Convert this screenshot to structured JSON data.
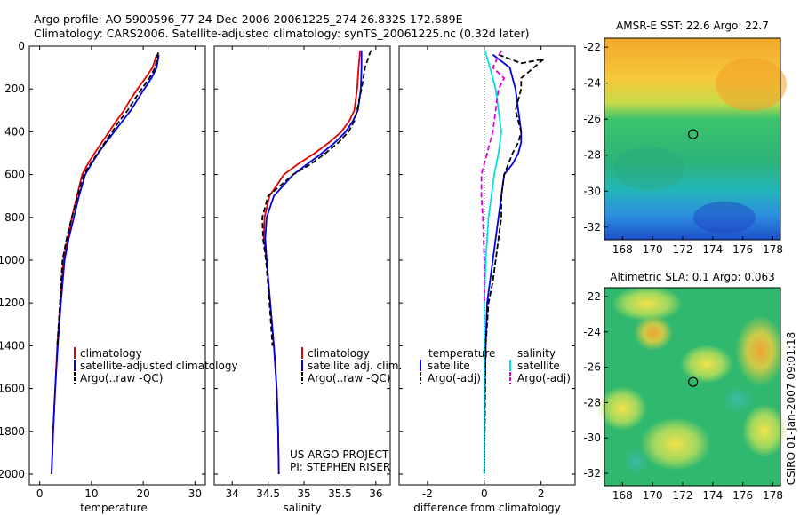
{
  "header": {
    "line1": "Argo profile: AO 5900596_77 24-Dec-2006 20061225_274 26.832S 172.689E",
    "line2": "Climatology: CARS2006. Satellite-adjusted climatology: synTS_20061225.nc (0.32d later)"
  },
  "y_axis": {
    "ticks": [
      0,
      200,
      400,
      600,
      800,
      1000,
      1200,
      1400,
      1600,
      1800,
      2000
    ],
    "ylim": [
      0,
      2050
    ]
  },
  "panels": {
    "temperature": {
      "xlabel": "temperature",
      "xlim": [
        -2,
        32
      ],
      "xticks": [
        0,
        10,
        20,
        30
      ],
      "legend": [
        "climatology",
        "satellite-adjusted climatology",
        "Argo(..raw -QC)"
      ]
    },
    "salinity": {
      "xlabel": "salinity",
      "xlim": [
        33.75,
        36.2
      ],
      "xticks": [
        34,
        34.5,
        35,
        35.5,
        36
      ],
      "legend": [
        "climatology",
        "satellite adj. clim.",
        "Argo(..raw -QC)"
      ],
      "credit1": "US ARGO PROJECT",
      "credit2": "PI: STEPHEN RISER"
    },
    "difference": {
      "xlabel": "difference from climatology",
      "xlim": [
        -3,
        3.2
      ],
      "xticks": [
        -2,
        0,
        2
      ],
      "legend_temp_head": "temperature",
      "legend_sal_head": "salinity",
      "legend_temp": [
        "satellite",
        "Argo(-adj)"
      ],
      "legend_sal": [
        "satellite",
        "Argo(-adj)"
      ]
    }
  },
  "maps": {
    "sst": {
      "title": "AMSR-E SST: 22.6 Argo: 22.7",
      "yticks": [
        -22,
        -24,
        -26,
        -28,
        -30,
        -32
      ],
      "xticks": [
        168,
        170,
        172,
        174,
        176,
        178
      ]
    },
    "sla": {
      "title": "Altimetric SLA: 0.1 Argo: 0.063",
      "yticks": [
        -22,
        -24,
        -26,
        -28,
        -30,
        -32
      ],
      "xticks": [
        168,
        170,
        172,
        174,
        176,
        178
      ]
    },
    "float_position": {
      "lon": 172.689,
      "lat": -26.832
    },
    "xlim": [
      166.8,
      178.5
    ],
    "ylim": [
      -32.7,
      -21.5
    ]
  },
  "side_label": "CSIRO 01-Jan-2007 09:01:18",
  "colors": {
    "climatology": "#e00000",
    "satellite": "#0000e0",
    "argo": "#000000",
    "sal_satellite": "#00e0e0",
    "sal_argo": "#e000e0"
  },
  "chart_data": [
    {
      "type": "line",
      "title": "",
      "xlabel": "temperature",
      "ylabel": "",
      "xlim": [
        -2,
        32
      ],
      "ylim": [
        0,
        2050
      ],
      "series": [
        {
          "name": "climatology",
          "x": [
            22.6,
            21.8,
            20.4,
            18.9,
            17.5,
            16.3,
            14.8,
            13.4,
            12.0,
            10.6,
            9.3,
            8.2,
            7.2,
            6.2,
            5.4,
            4.6,
            4.0,
            3.4,
            3.0,
            2.6,
            2.3
          ],
          "y": [
            40,
            100,
            150,
            200,
            250,
            300,
            350,
            400,
            450,
            500,
            550,
            600,
            700,
            800,
            900,
            1000,
            1200,
            1400,
            1600,
            1800,
            2000
          ]
        },
        {
          "name": "satellite-adjusted climatology",
          "x": [
            23.0,
            22.6,
            21.6,
            20.2,
            18.9,
            17.6,
            16.0,
            14.4,
            12.8,
            11.3,
            10.0,
            8.8,
            7.6,
            6.6,
            5.6,
            4.8,
            4.1,
            3.5,
            3.0,
            2.6,
            2.3
          ],
          "y": [
            40,
            100,
            150,
            200,
            250,
            300,
            350,
            400,
            450,
            500,
            550,
            600,
            700,
            800,
            900,
            1000,
            1200,
            1400,
            1600,
            1800,
            2000
          ]
        },
        {
          "name": "Argo(..raw -QC)",
          "x": [
            22.9,
            22.3,
            21.2,
            19.7,
            18.3,
            17.0,
            15.4,
            14.0,
            12.6,
            11.2,
            9.8,
            8.5,
            7.3,
            6.2,
            5.2,
            4.4,
            3.9,
            3.4
          ],
          "y": [
            30,
            100,
            150,
            200,
            250,
            300,
            350,
            400,
            450,
            500,
            550,
            600,
            700,
            800,
            900,
            1000,
            1200,
            1400
          ]
        }
      ]
    },
    {
      "type": "line",
      "title": "",
      "xlabel": "salinity",
      "ylabel": "",
      "xlim": [
        33.75,
        36.2
      ],
      "ylim": [
        0,
        2050
      ],
      "series": [
        {
          "name": "climatology",
          "x": [
            35.78,
            35.76,
            35.74,
            35.7,
            35.63,
            35.52,
            35.35,
            35.15,
            34.92,
            34.72,
            34.52,
            34.45,
            34.44,
            34.48,
            34.53,
            34.58,
            34.62,
            34.64,
            34.65
          ],
          "y": [
            20,
            100,
            200,
            300,
            350,
            400,
            450,
            500,
            550,
            600,
            700,
            800,
            900,
            1000,
            1200,
            1400,
            1600,
            1800,
            2000
          ]
        },
        {
          "name": "satellite adj. clim.",
          "x": [
            35.8,
            35.8,
            35.79,
            35.75,
            35.68,
            35.58,
            35.43,
            35.25,
            35.05,
            34.85,
            34.58,
            34.48,
            34.46,
            34.48,
            34.53,
            34.58,
            34.62,
            34.64,
            34.65
          ],
          "y": [
            20,
            100,
            200,
            300,
            350,
            400,
            450,
            500,
            550,
            600,
            700,
            800,
            900,
            1000,
            1200,
            1400,
            1600,
            1800,
            2000
          ]
        },
        {
          "name": "Argo(..raw -QC)",
          "x": [
            35.93,
            35.85,
            35.8,
            35.74,
            35.7,
            35.62,
            35.48,
            35.3,
            35.1,
            34.85,
            34.5,
            34.42,
            34.43,
            34.47,
            34.52,
            34.56
          ],
          "y": [
            20,
            100,
            200,
            300,
            350,
            400,
            450,
            500,
            550,
            600,
            700,
            800,
            900,
            1000,
            1200,
            1400
          ]
        }
      ]
    },
    {
      "type": "line",
      "title": "",
      "xlabel": "difference from climatology",
      "ylabel": "",
      "xlim": [
        -3,
        3.2
      ],
      "ylim": [
        0,
        2050
      ],
      "series": [
        {
          "name": "temperature satellite",
          "x": [
            0.3,
            0.9,
            1.1,
            1.2,
            1.3,
            1.3,
            1.2,
            1.0,
            0.7,
            0.6,
            0.5,
            0.4,
            0.3,
            0.2,
            0.1,
            0.05,
            0.02,
            0
          ],
          "y": [
            40,
            100,
            200,
            300,
            400,
            450,
            500,
            550,
            600,
            700,
            800,
            900,
            1000,
            1100,
            1200,
            1400,
            1600,
            2000
          ]
        },
        {
          "name": "temperature Argo(-adj)",
          "x": [
            0.5,
            1.3,
            2.1,
            1.3,
            1.3,
            1.1,
            1.3,
            1.2,
            1.0,
            0.7,
            0.6,
            0.6,
            0.5,
            0.4,
            0.3,
            0.15,
            0.05,
            0
          ],
          "y": [
            40,
            80,
            60,
            150,
            200,
            300,
            400,
            450,
            500,
            600,
            700,
            800,
            900,
            1000,
            1100,
            1200,
            1400,
            2000
          ]
        },
        {
          "name": "salinity satellite",
          "x": [
            0.02,
            0.2,
            0.4,
            0.5,
            0.6,
            0.55,
            0.5,
            0.35,
            0.25,
            0.15,
            0.05,
            0,
            0
          ],
          "y": [
            20,
            100,
            200,
            300,
            400,
            450,
            500,
            600,
            700,
            800,
            1000,
            1200,
            2000
          ]
        },
        {
          "name": "salinity Argo(-adj)",
          "x": [
            0.6,
            0.3,
            0.7,
            0.5,
            0.4,
            0.3,
            0.1,
            -0.1,
            -0.1,
            -0.05,
            0,
            0
          ],
          "y": [
            20,
            100,
            150,
            200,
            300,
            400,
            500,
            600,
            700,
            800,
            1000,
            1200
          ]
        }
      ]
    }
  ]
}
